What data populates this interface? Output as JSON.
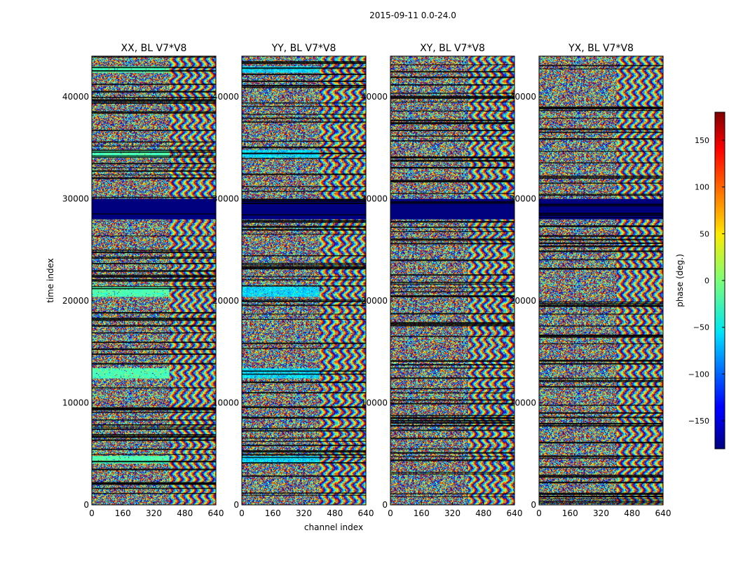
{
  "chart_data": {
    "type": "heatmap",
    "title": "2015-09-11 0.0-24.0",
    "xlabel": "channel index",
    "ylabel": "time index",
    "xlim": [
      0,
      640
    ],
    "ylim": [
      0,
      44000
    ],
    "xticks": [
      "0",
      "160",
      "320",
      "480",
      "640"
    ],
    "yticks": [
      "0",
      "10000",
      "20000",
      "30000",
      "40000"
    ],
    "panels": [
      {
        "title": "XX, BL V7*V8"
      },
      {
        "title": "YY, BL V7*V8"
      },
      {
        "title": "XY, BL V7*V8"
      },
      {
        "title": "YX, BL V7*V8"
      }
    ],
    "colorbar": {
      "label": "phase (deg.)",
      "range": [
        -180,
        180
      ],
      "ticks": [
        "150",
        "100",
        "50",
        "0",
        "−50",
        "−100",
        "−150"
      ],
      "tick_values": [
        150,
        100,
        50,
        0,
        -50,
        -100,
        -150
      ],
      "colormap": "jet"
    }
  }
}
